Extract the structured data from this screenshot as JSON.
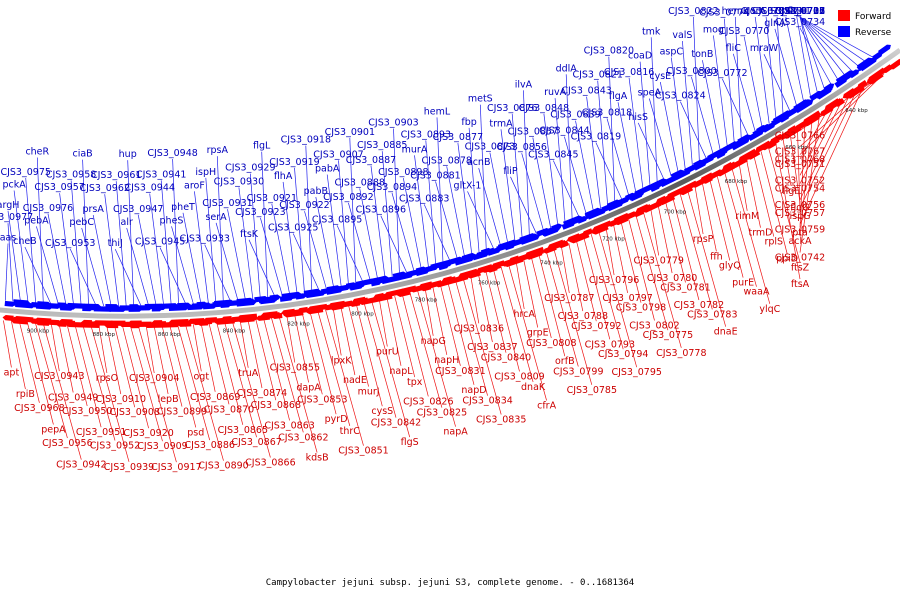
{
  "colors": {
    "forward": "#ff0000",
    "reverse": "#0000ff",
    "forward_line": "#ee1111",
    "reverse_line": "#2222ee",
    "backbone": "#666666"
  },
  "legend": {
    "forward": "Forward",
    "reverse": "Reverse"
  },
  "caption": "Campylobacter jejuni subsp. jejuni S3, complete genome. - 0..1681364",
  "ticks": [
    "900 kbp",
    "880 kbp",
    "860 kbp",
    "840 kbp",
    "820 kbp",
    "800 kbp",
    "780 kbp",
    "760 kbp",
    "740 kbp",
    "720 kbp",
    "700 kbp",
    "680 kbp",
    "660 kbp",
    "640 kbp"
  ],
  "reverse_labels": [
    "aas",
    "CJS3_0977",
    "argH",
    "pckA",
    "CJS3_0975",
    "cheR",
    "cheB",
    "pebA",
    "CJS3_0976",
    "CJS3_0957",
    "CJS3_0958",
    "ciaB",
    "CJS3_0953",
    "pebC",
    "prsA",
    "CJS3_0962",
    "CJS3_0961",
    "hup",
    "thiJ",
    "alr",
    "CJS3_0947",
    "CJS3_0944",
    "CJS3_0941",
    "CJS3_0948",
    "CJS3_0945",
    "pheS",
    "pheT",
    "aroF",
    "ispH",
    "rpsA",
    "CJS3_0933",
    "serA",
    "CJS3_0931",
    "CJS3_0930",
    "CJS3_0929",
    "flgL",
    "ftsK",
    "CJS3_0923",
    "CJS3_0921",
    "flhA",
    "CJS3_0919",
    "CJS3_0918",
    "CJS3_0925",
    "CJS3_0922",
    "pabB",
    "pabA",
    "CJS3_0907",
    "CJS3_0901",
    "CJS3_0895",
    "CJS3_0892",
    "CJS3_0888",
    "CJS3_0887",
    "CJS3_0885",
    "CJS3_0903",
    "CJS3_0896",
    "CJS3_0894",
    "CJS3_0898",
    "murA",
    "CJS3_0893",
    "hemL",
    "CJS3_0883",
    "CJS3_0881",
    "CJS3_0878",
    "CJS3_0877",
    "fbp",
    "metS",
    "gltX-1",
    "acnB",
    "CJS3_0873",
    "trmA",
    "CJS3_0876",
    "ilvA",
    "fliP",
    "CJS3_0856",
    "CJS3_0857",
    "CJS3_0848",
    "ruvA",
    "ddlA",
    "CJS3_0845",
    "CJS3_0844",
    "CJS3_0839",
    "CJS3_0843",
    "CJS3_0821",
    "CJS3_0820",
    "CJS3_0819",
    "CJS3_0818",
    "flgA",
    "CJS3_0816",
    "coaD",
    "tmk",
    "hisS",
    "speA",
    "cysE",
    "aspC",
    "valS",
    "CJS3_0822",
    "CJS3_0824",
    "CJS3_0800",
    "tonB",
    "mog",
    "CJS3_0774",
    "hemK",
    "CJS3_0772",
    "fliC",
    "CJS3_0770",
    "corA",
    "CJS3_0786",
    "CJS3_0743",
    "mraW",
    "glnA",
    "CJS3_0741",
    "flgH",
    "CJS3_0736",
    "CJS3_0735",
    "CJS3_0734",
    "CJS3_0733",
    "CJS3_0727",
    "CJS3_0701",
    "CJS3_0703",
    "CJS3_0705",
    "CJS3_0712"
  ],
  "forward_labels": [
    "apt",
    "rpiB",
    "CJS3_0968",
    "pepA",
    "CJS3_0956",
    "CJS3_0942",
    "CJS3_0943",
    "CJS3_0949",
    "CJS3_0950",
    "CJS3_0951",
    "CJS3_0952",
    "CJS3_0939",
    "rpsO",
    "CJS3_0910",
    "CJS3_0908",
    "CJS3_0920",
    "CJS3_0909",
    "CJS3_0917",
    "CJS3_0904",
    "lepB",
    "CJS3_0899",
    "psd",
    "CJS3_0886",
    "CJS3_0890",
    "ogt",
    "CJS3_0869",
    "CJS3_0870",
    "CJS3_0865",
    "CJS3_0867",
    "CJS3_0866",
    "truA",
    "CJS3_0874",
    "CJS3_0868",
    "CJS3_0863",
    "CJS3_0862",
    "kdsB",
    "CJS3_0855",
    "dapA",
    "CJS3_0853",
    "pyrD",
    "thrC",
    "CJS3_0851",
    "lpxK",
    "nadE",
    "murJ",
    "cysS",
    "CJS3_0842",
    "flgS",
    "purU",
    "napL",
    "tpx",
    "CJS3_0826",
    "CJS3_0825",
    "napA",
    "napG",
    "napH",
    "CJS3_0831",
    "napD",
    "CJS3_0834",
    "CJS3_0835",
    "CJS3_0836",
    "CJS3_0837",
    "CJS3_0840",
    "CJS3_0809",
    "dnaK",
    "cfrA",
    "hrcA",
    "grpE",
    "CJS3_0808",
    "orfB",
    "CJS3_0799",
    "CJS3_0785",
    "CJS3_0787",
    "CJS3_0788",
    "CJS3_0792",
    "CJS3_0793",
    "CJS3_0794",
    "CJS3_0795",
    "CJS3_0796",
    "CJS3_0797",
    "CJS3_0798",
    "CJS3_0802",
    "CJS3_0775",
    "CJS3_0778",
    "CJS3_0779",
    "CJS3_0780",
    "CJS3_0781",
    "CJS3_0782",
    "CJS3_0783",
    "dnaE",
    "rpsP",
    "ffh",
    "glyQ",
    "purE",
    "waaA",
    "ylqC",
    "rimM",
    "trmD",
    "rplS",
    "ppiD",
    "ftsZ",
    "ftsA",
    "flgF",
    "flgG",
    "ispG",
    "pta",
    "ackA",
    "CJS3_0742",
    "CJS3_0751",
    "CJS3_0752",
    "CJS3_0754",
    "CJS3_0756",
    "CJS3_0757",
    "CJS3_0759",
    "CJS3_0766",
    "CJS3_0767",
    "CJS3_0768"
  ]
}
